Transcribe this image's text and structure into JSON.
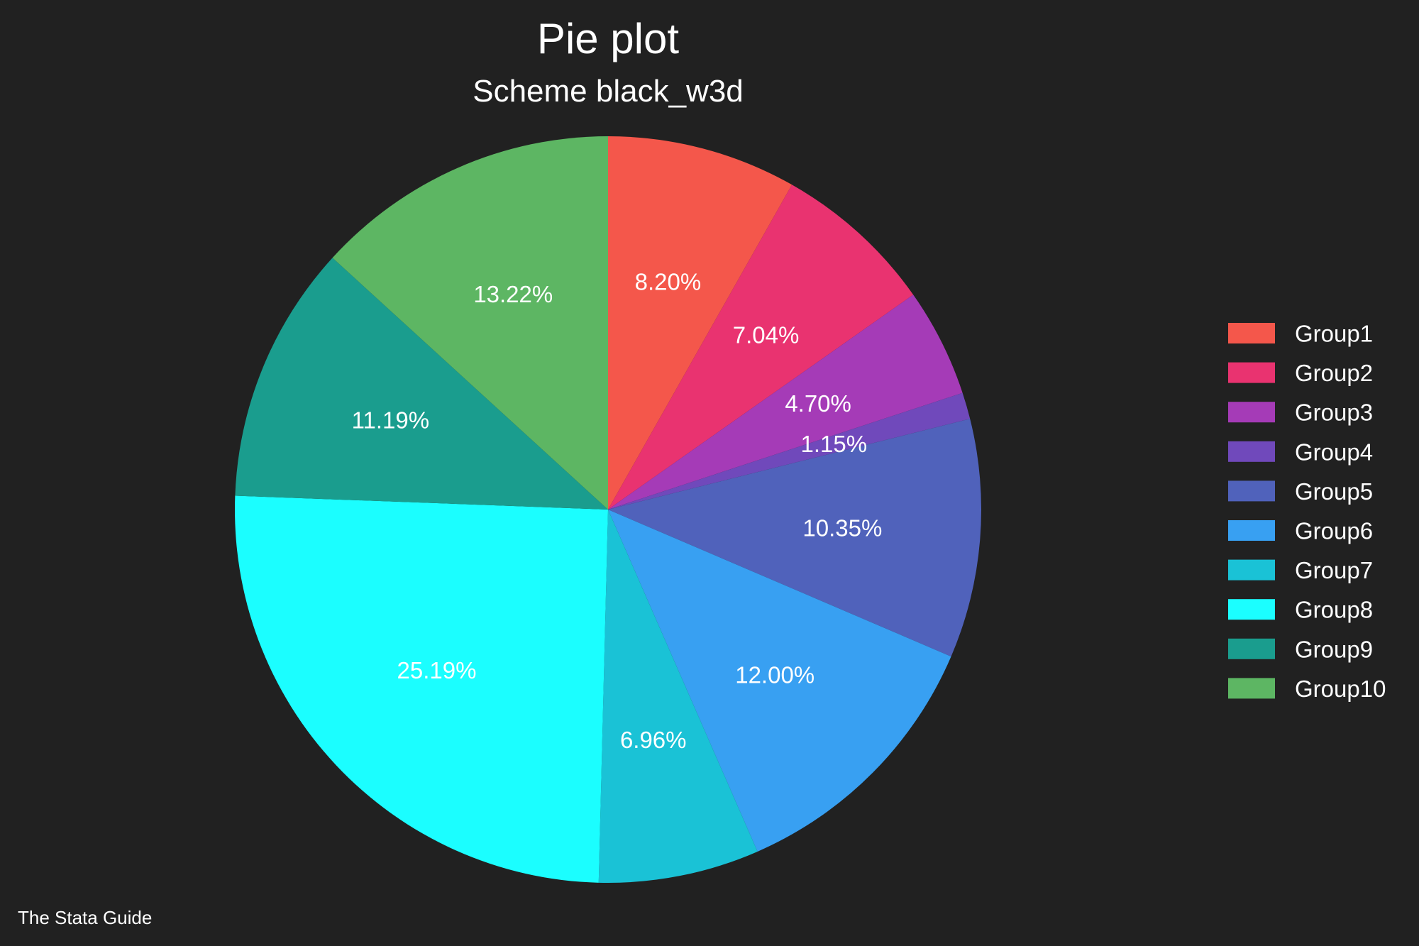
{
  "chart_data": {
    "type": "pie",
    "title": "Pie plot",
    "subtitle": "Scheme black_w3d",
    "note": "The Stata Guide",
    "legend_position": "right",
    "start_angle_deg": 90,
    "direction": "clockwise",
    "slices": [
      {
        "name": "Group1",
        "value": 8.2,
        "label": "8.20%",
        "color": "#F4574B"
      },
      {
        "name": "Group2",
        "value": 7.04,
        "label": "7.04%",
        "color": "#E93370"
      },
      {
        "name": "Group3",
        "value": 4.7,
        "label": "4.70%",
        "color": "#A53BB7"
      },
      {
        "name": "Group4",
        "value": 1.15,
        "label": "1.15%",
        "color": "#7049BB"
      },
      {
        "name": "Group5",
        "value": 10.35,
        "label": "10.35%",
        "color": "#5062BB"
      },
      {
        "name": "Group6",
        "value": 12.0,
        "label": "12.00%",
        "color": "#38A0F2"
      },
      {
        "name": "Group7",
        "value": 6.96,
        "label": "6.96%",
        "color": "#1AC2D6"
      },
      {
        "name": "Group8",
        "value": 25.19,
        "label": "25.19%",
        "color": "#1BFEFF"
      },
      {
        "name": "Group9",
        "value": 11.19,
        "label": "11.19%",
        "color": "#1A9D8E"
      },
      {
        "name": "Group10",
        "value": 13.22,
        "label": "13.22%",
        "color": "#5DB663"
      }
    ]
  },
  "colors": {
    "background": "#212121",
    "text": "#ffffff"
  }
}
